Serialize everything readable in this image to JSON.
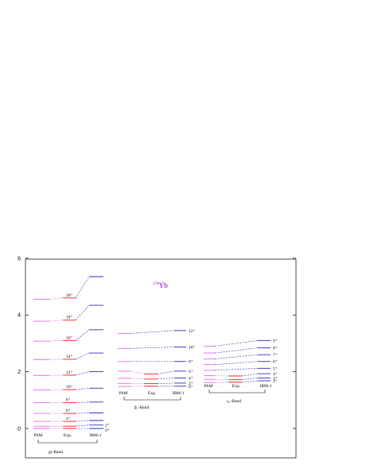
{
  "chart_data": {
    "type": "level-scheme",
    "title_mass": "174",
    "title_element": "Yb",
    "ylim": [
      -0.9,
      6
    ],
    "yticks": [
      0,
      2,
      4,
      6
    ],
    "colors": {
      "phm": "#e86ae8",
      "exp": "#ff3b3b",
      "ibm": "#2b2bcc",
      "text": "#000000"
    },
    "bands": [
      {
        "name": "gr-Band",
        "columns": [
          "PhM",
          "Exp.",
          "IBM-1"
        ],
        "levels": [
          {
            "label": "0⁺",
            "phm": 0.0,
            "exp": 0.0,
            "ibm": 0.0
          },
          {
            "label": "2⁺",
            "phm": 0.08,
            "exp": 0.08,
            "ibm": 0.12
          },
          {
            "label": "4⁺",
            "phm": 0.25,
            "exp": 0.25,
            "ibm": 0.28
          },
          {
            "label": "6⁺",
            "phm": 0.53,
            "exp": 0.53,
            "ibm": 0.55
          },
          {
            "label": "8⁺",
            "phm": 0.91,
            "exp": 0.91,
            "ibm": 0.93
          },
          {
            "label": "10⁺",
            "phm": 1.36,
            "exp": 1.37,
            "ibm": 1.42
          },
          {
            "label": "12⁺",
            "phm": 1.87,
            "exp": 1.88,
            "ibm": 2.0
          },
          {
            "label": "14⁺",
            "phm": 2.43,
            "exp": 2.44,
            "ibm": 2.66
          },
          {
            "label": "16⁺",
            "phm": 3.08,
            "exp": 3.1,
            "ibm": 3.48
          },
          {
            "label": "18⁺",
            "phm": 3.78,
            "exp": 3.82,
            "ibm": 4.34
          },
          {
            "label": "20⁺",
            "phm": 4.55,
            "exp": 4.6,
            "ibm": 5.35
          }
        ]
      },
      {
        "name": "β₁-Band",
        "columns": [
          "PhM",
          "Exp.",
          "IBM-1"
        ],
        "levels": [
          {
            "label": "0⁺",
            "phm": 1.48,
            "exp": 1.49,
            "ibm": 1.49
          },
          {
            "label": "2⁺",
            "phm": 1.59,
            "exp": 1.58,
            "ibm": 1.6
          },
          {
            "label": "4⁺",
            "phm": 1.77,
            "exp": 1.74,
            "ibm": 1.78
          },
          {
            "label": "6⁺",
            "phm": 2.02,
            "exp": 1.92,
            "ibm": 2.02
          },
          {
            "label": "8⁺",
            "phm": 2.36,
            "exp": null,
            "ibm": 2.36
          },
          {
            "label": "10⁺",
            "phm": 2.82,
            "exp": null,
            "ibm": 2.87
          },
          {
            "label": "12⁺",
            "phm": 3.35,
            "exp": null,
            "ibm": 3.45
          }
        ]
      },
      {
        "name": "γ₁-Band",
        "columns": [
          "PhM",
          "Exp.",
          "IBM-1"
        ],
        "levels": [
          {
            "label": "2⁺",
            "phm": 1.62,
            "exp": 1.63,
            "ibm": 1.68
          },
          {
            "label": "3⁺",
            "phm": 1.73,
            "exp": 1.72,
            "ibm": 1.78
          },
          {
            "label": "4⁺",
            "phm": 1.86,
            "exp": 1.85,
            "ibm": 1.93
          },
          {
            "label": "5⁺",
            "phm": 2.05,
            "exp": null,
            "ibm": 2.12
          },
          {
            "label": "6⁺",
            "phm": 2.25,
            "exp": null,
            "ibm": 2.36
          },
          {
            "label": "7⁺",
            "phm": 2.45,
            "exp": null,
            "ibm": 2.6
          },
          {
            "label": "8⁺",
            "phm": 2.66,
            "exp": null,
            "ibm": 2.84
          },
          {
            "label": "9⁺",
            "phm": 2.9,
            "exp": null,
            "ibm": 3.1
          }
        ]
      }
    ]
  }
}
